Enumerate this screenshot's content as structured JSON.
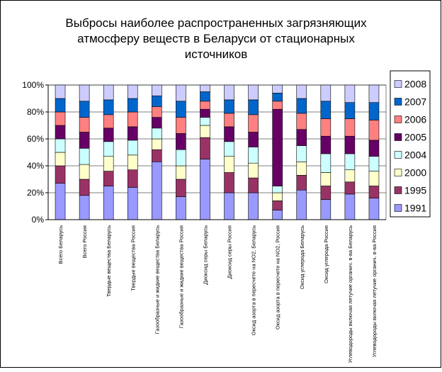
{
  "chart_data": {
    "type": "stacked_bar_100",
    "title": [
      "Выбросы наиболее распространенных загрязняющих",
      "атмосферу веществ в Беларуси от стационарных",
      "источников"
    ],
    "categories": [
      "Всего Беларусь",
      "Всего Россия",
      "Твердые вещества Беларусь",
      "Твердые вещества Россия",
      "Газообразные и жидкие вещества Беларусь",
      "Газообразные и жидкие вещества Россия",
      "Диоксид серы Беларусь",
      "Диоксид серы Россия",
      "Оксид азорта в пересчете на NO2, Беларусь",
      "Оксид азорта в пересчете на NO2, Россия",
      "Оксид углерода Беларусь",
      "Оксид углерода Россия",
      "Углеводороды включая летучие органич. в-ва Беларусь",
      "Углеводороды включая летучие органич. в-ва Россия"
    ],
    "series": [
      {
        "name": "1991",
        "color": "#9999ff",
        "values": [
          27,
          18,
          25,
          24,
          43,
          17,
          45,
          20,
          20,
          7,
          22,
          15,
          19,
          16
        ]
      },
      {
        "name": "1995",
        "color": "#993366",
        "values": [
          13,
          12,
          11,
          13,
          9,
          13,
          16,
          15,
          11,
          7,
          11,
          10,
          9,
          9
        ]
      },
      {
        "name": "2000",
        "color": "#ffffcc",
        "values": [
          10,
          11,
          11,
          11,
          8,
          10,
          9,
          12,
          11,
          6,
          10,
          10,
          9,
          11
        ]
      },
      {
        "name": "2004",
        "color": "#ccffff",
        "values": [
          10,
          12,
          11,
          11,
          8,
          12,
          6,
          11,
          12,
          5,
          12,
          14,
          12,
          11
        ]
      },
      {
        "name": "2005",
        "color": "#660066",
        "values": [
          10,
          12,
          10,
          10,
          8,
          12,
          6,
          11,
          11,
          57,
          12,
          13,
          13,
          12
        ]
      },
      {
        "name": "2006",
        "color": "#ff8080",
        "values": [
          10,
          11,
          10,
          11,
          8,
          12,
          6,
          10,
          13,
          6,
          12,
          13,
          13,
          15
        ]
      },
      {
        "name": "2007",
        "color": "#0066cc",
        "values": [
          10,
          12,
          11,
          10,
          8,
          12,
          7,
          10,
          11,
          6,
          11,
          13,
          12,
          13
        ]
      },
      {
        "name": "2008",
        "color": "#ccccff",
        "values": [
          10,
          12,
          11,
          10,
          8,
          12,
          5,
          11,
          11,
          6,
          10,
          12,
          13,
          13
        ]
      }
    ],
    "ylim": [
      0,
      100
    ],
    "yticks": [
      {
        "value": 0,
        "label": "0%"
      },
      {
        "value": 20,
        "label": "20%"
      },
      {
        "value": 40,
        "label": "40%"
      },
      {
        "value": 60,
        "label": "60%"
      },
      {
        "value": 80,
        "label": "80%"
      },
      {
        "value": 100,
        "label": "100%"
      }
    ],
    "grid": true,
    "legend": "right"
  }
}
